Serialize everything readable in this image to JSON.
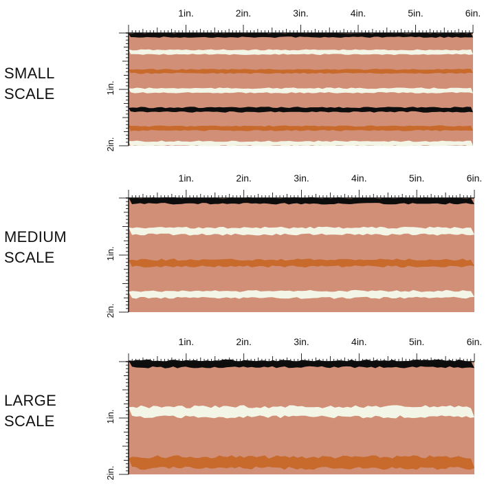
{
  "sections": [
    {
      "label": "SMALL\nSCALE",
      "inch_labels": [
        "1in.",
        "2in.",
        "3in.",
        "4in.",
        "5in.",
        "6in."
      ],
      "vertical_labels": [
        "1in.",
        "2in."
      ],
      "stripes": [
        {
          "color": "#0d0d0d",
          "pos": 0.02,
          "thick": 0.035
        },
        {
          "color": "#f3f6e6",
          "pos": 0.17,
          "thick": 0.04
        },
        {
          "color": "#c76a2c",
          "pos": 0.34,
          "thick": 0.035
        },
        {
          "color": "#f3f6e6",
          "pos": 0.51,
          "thick": 0.04
        },
        {
          "color": "#0d0d0d",
          "pos": 0.68,
          "thick": 0.04
        },
        {
          "color": "#c76a2c",
          "pos": 0.845,
          "thick": 0.04
        },
        {
          "color": "#f3f6e6",
          "pos": 0.98,
          "thick": 0.04
        }
      ]
    },
    {
      "label": "MEDIUM\nSCALE",
      "inch_labels": [
        "1in.",
        "2in.",
        "3in.",
        "4in.",
        "5in.",
        "6in."
      ],
      "vertical_labels": [
        "1in.",
        "2in."
      ],
      "stripes": [
        {
          "color": "#0d0d0d",
          "pos": 0.025,
          "thick": 0.05
        },
        {
          "color": "#f3f6e6",
          "pos": 0.29,
          "thick": 0.06
        },
        {
          "color": "#c76a2c",
          "pos": 0.57,
          "thick": 0.06
        },
        {
          "color": "#f3f6e6",
          "pos": 0.845,
          "thick": 0.06
        }
      ]
    },
    {
      "label": "LARGE\nSCALE",
      "inch_labels": [
        "1in.",
        "2in.",
        "3in.",
        "4in.",
        "5in.",
        "6in."
      ],
      "vertical_labels": [
        "1in.",
        "2in."
      ],
      "stripes": [
        {
          "color": "#0d0d0d",
          "pos": 0.02,
          "thick": 0.06
        },
        {
          "color": "#f3f6e6",
          "pos": 0.445,
          "thick": 0.09
        },
        {
          "color": "#c76a2c",
          "pos": 0.895,
          "thick": 0.1
        }
      ]
    }
  ],
  "colors": {
    "background_stripe": "#d18f78",
    "ruler": "#111111"
  }
}
